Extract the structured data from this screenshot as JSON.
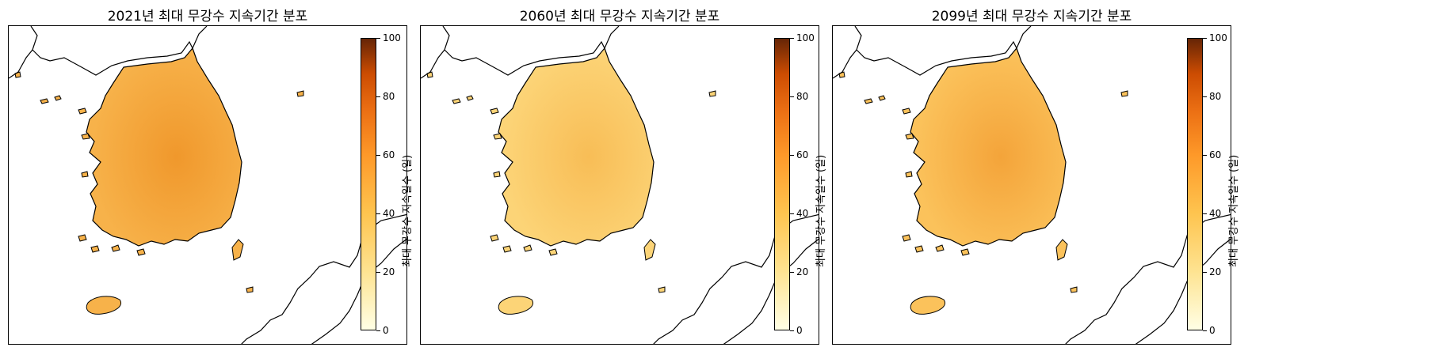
{
  "panels": [
    {
      "title": "2021년 최대 무강수 지속기간 분포",
      "fill": "#f7b24a",
      "fill2": "#f0982c"
    },
    {
      "title": "2060년 최대 무강수 지속기간 분포",
      "fill": "#fcd477",
      "fill2": "#f8bd56"
    },
    {
      "title": "2099년 최대 무강수 지속기간 분포",
      "fill": "#fbc25b",
      "fill2": "#f4a43a"
    }
  ],
  "colorbar": {
    "label": "최대 무강수 지속일수 (일)",
    "ticks": [
      "0",
      "20",
      "40",
      "60",
      "80",
      "100"
    ]
  },
  "chart_data": {
    "type": "heatmap",
    "colorbar_range": [
      0,
      100
    ],
    "colormap": "YlOrBr",
    "maps": [
      {
        "title": "2021년 최대 무강수 지속기간 분포"
      },
      {
        "title": "2060년 최대 무강수 지속기간 분포"
      },
      {
        "title": "2099년 최대 무강수 지속기간 분포"
      }
    ]
  }
}
